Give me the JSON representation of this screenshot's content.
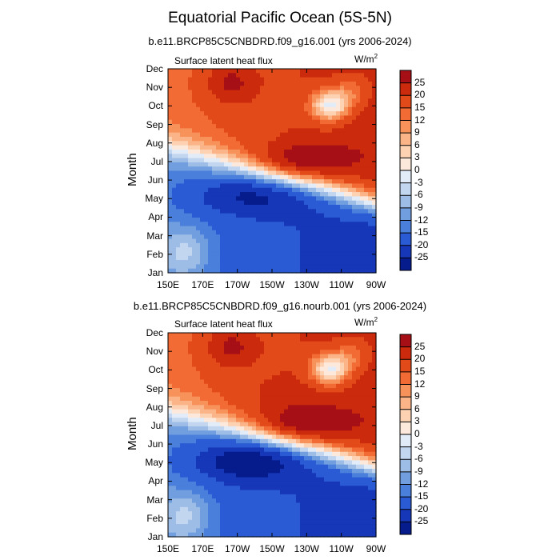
{
  "figure": {
    "title": "Equatorial Pacific Ocean (5S-5N)",
    "units": "W/m",
    "units_superscript": "2",
    "variable": "Surface latent heat flux"
  },
  "chart_data": [
    {
      "type": "heatmap",
      "subtitle": "b.e11.BRCP85C5CNBDRD.f09_g16.001 (yrs 2006-2024)",
      "left_label": "Surface latent heat flux",
      "ylabel": "Month",
      "xlabel": "",
      "x_ticks": [
        "150E",
        "170E",
        "170W",
        "150W",
        "130W",
        "110W",
        "90W"
      ],
      "y_ticks": [
        "Jan",
        "Feb",
        "Mar",
        "Apr",
        "May",
        "Jun",
        "Jul",
        "Aug",
        "Sep",
        "Oct",
        "Nov",
        "Dec"
      ],
      "x_range": [
        "150E",
        "90W"
      ],
      "colorbar_levels": [
        "25",
        "20",
        "15",
        "12",
        "9",
        "6",
        "3",
        "0",
        "-3",
        "-6",
        "-9",
        "-12",
        "-15",
        "-20",
        "-25"
      ],
      "colors": [
        "#a50f15",
        "#cb2a0c",
        "#e34a1a",
        "#f26a34",
        "#f7935a",
        "#fab487",
        "#fcd2b3",
        "#fde9dc",
        "#e2ecf8",
        "#c3d6f0",
        "#9dbce6",
        "#709ede",
        "#4a7fdc",
        "#2a5bd4",
        "#1537b8",
        "#061c8c"
      ]
    },
    {
      "type": "heatmap",
      "subtitle": "b.e11.BRCP85C5CNBDRD.f09_g16.nourb.001 (yrs 2006-2024)",
      "left_label": "Surface latent heat flux",
      "ylabel": "Month",
      "xlabel": "",
      "x_ticks": [
        "150E",
        "170E",
        "170W",
        "150W",
        "130W",
        "110W",
        "90W"
      ],
      "y_ticks": [
        "Jan",
        "Feb",
        "Mar",
        "Apr",
        "May",
        "Jun",
        "Jul",
        "Aug",
        "Sep",
        "Oct",
        "Nov",
        "Dec"
      ],
      "x_range": [
        "150E",
        "90W"
      ],
      "colorbar_levels": [
        "25",
        "20",
        "15",
        "12",
        "9",
        "6",
        "3",
        "0",
        "-3",
        "-6",
        "-9",
        "-12",
        "-15",
        "-20",
        "-25"
      ],
      "colors": [
        "#a50f15",
        "#cb2a0c",
        "#e34a1a",
        "#f26a34",
        "#f7935a",
        "#fab487",
        "#fcd2b3",
        "#fde9dc",
        "#e2ecf8",
        "#c3d6f0",
        "#9dbce6",
        "#709ede",
        "#4a7fdc",
        "#2a5bd4",
        "#1537b8",
        "#061c8c"
      ]
    }
  ]
}
